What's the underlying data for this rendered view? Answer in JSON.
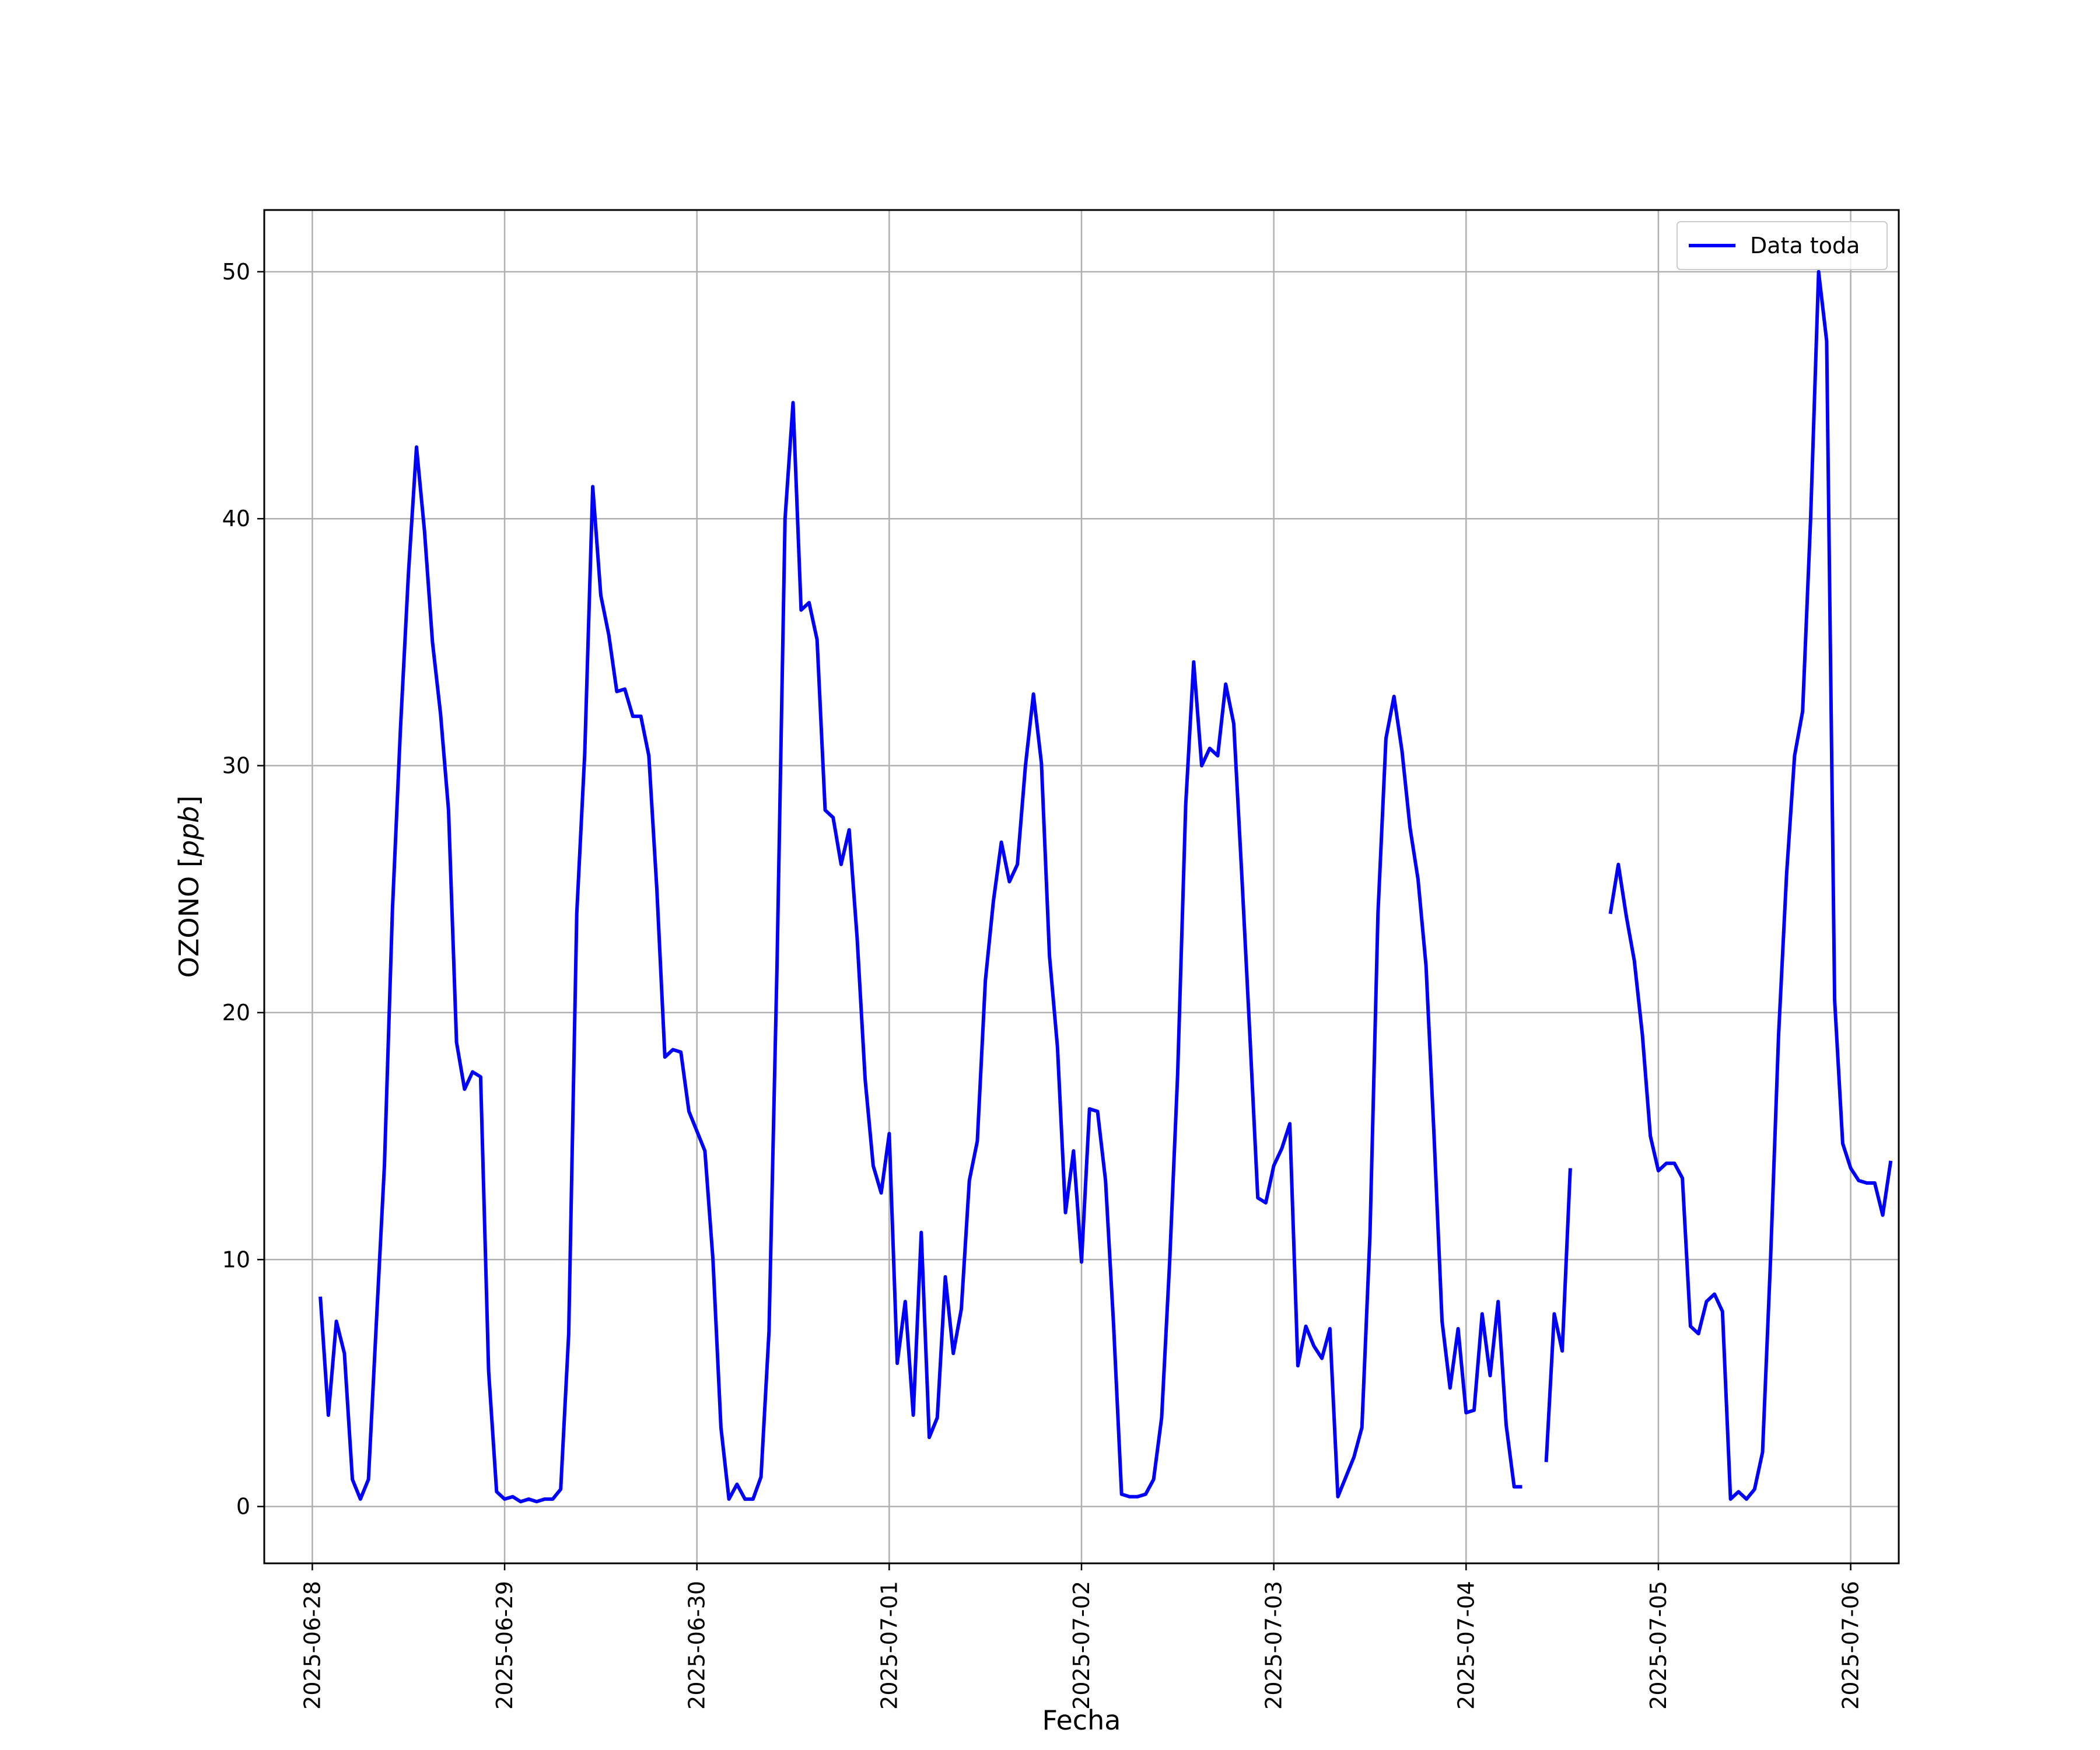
{
  "chart_data": {
    "type": "line",
    "xlabel": "Fecha",
    "ylabel_main": "OZONO",
    "ylabel_unit": "ppb",
    "ylim": [
      -2.3,
      52.5
    ],
    "xlim": [
      "2025-06-27T18:00",
      "2025-07-06T06:00"
    ],
    "grid": true,
    "legend_position": "top-right",
    "colors": {
      "line": "#0000ff",
      "grid": "#b0b0b0",
      "axes": "#000000"
    },
    "x_ticks": [
      "2025-06-28",
      "2025-06-29",
      "2025-06-30",
      "2025-07-01",
      "2025-07-02",
      "2025-07-03",
      "2025-07-04",
      "2025-07-05",
      "2025-07-06"
    ],
    "y_ticks": [
      0,
      10,
      20,
      30,
      40,
      50
    ],
    "series": [
      {
        "name": "Data toda",
        "start": "2025-06-28T01:00",
        "step_hours": 1,
        "values": [
          8.5,
          3.7,
          7.5,
          6.2,
          1.1,
          0.3,
          1.1,
          7.5,
          13.8,
          24.2,
          31.5,
          37.8,
          42.9,
          39.5,
          35.0,
          32.1,
          28.2,
          18.8,
          16.9,
          17.6,
          17.4,
          5.5,
          0.6,
          0.3,
          0.4,
          0.2,
          0.3,
          0.2,
          0.3,
          0.3,
          0.7,
          7.0,
          24.0,
          30.5,
          41.3,
          36.9,
          35.3,
          33.0,
          33.1,
          32.0,
          32.0,
          30.4,
          25.0,
          18.2,
          18.5,
          18.4,
          16.0,
          15.2,
          14.4,
          10.0,
          3.2,
          0.3,
          0.9,
          0.3,
          0.3,
          1.2,
          7.1,
          22.0,
          40.0,
          44.7,
          36.3,
          36.6,
          35.1,
          28.2,
          27.9,
          26.0,
          27.4,
          23.0,
          17.3,
          13.8,
          12.7,
          15.1,
          5.8,
          8.3,
          3.7,
          11.1,
          2.8,
          3.6,
          9.3,
          6.2,
          8.0,
          13.2,
          14.8,
          21.3,
          24.5,
          26.9,
          25.3,
          26.0,
          30.0,
          32.9,
          30.1,
          22.3,
          18.6,
          11.9,
          14.4,
          9.9,
          16.1,
          16.0,
          13.2,
          7.4,
          0.5,
          0.4,
          0.4,
          0.5,
          1.1,
          3.6,
          9.9,
          17.5,
          28.4,
          34.2,
          30.0,
          30.7,
          30.4,
          33.3,
          31.7,
          25.6,
          19.2,
          12.5,
          12.3,
          13.8,
          14.5,
          15.5,
          5.7,
          7.3,
          6.5,
          6.0,
          7.2,
          0.4,
          1.2,
          2.0,
          3.2,
          11.0,
          24.0,
          31.1,
          32.8,
          30.6,
          27.5,
          25.4,
          21.9,
          15.0,
          7.5,
          4.8,
          7.2,
          3.8,
          3.9,
          7.8,
          5.3,
          8.3,
          3.3,
          0.8,
          0.8,
          null,
          null,
          1.8,
          7.8,
          6.3,
          13.7,
          null,
          null,
          null,
          null,
          24.0,
          26.0,
          23.9,
          22.1,
          19.1,
          15.0,
          13.6,
          13.9,
          13.9,
          13.3,
          7.3,
          7.0,
          8.3,
          8.6,
          7.9,
          0.3,
          0.6,
          0.3,
          0.7,
          2.2,
          10.0,
          19.1,
          25.6,
          30.4,
          32.2,
          40.0,
          50.0,
          47.2,
          20.5,
          14.7,
          13.7,
          13.2,
          13.1,
          13.1,
          11.8,
          14.0
        ]
      }
    ]
  }
}
